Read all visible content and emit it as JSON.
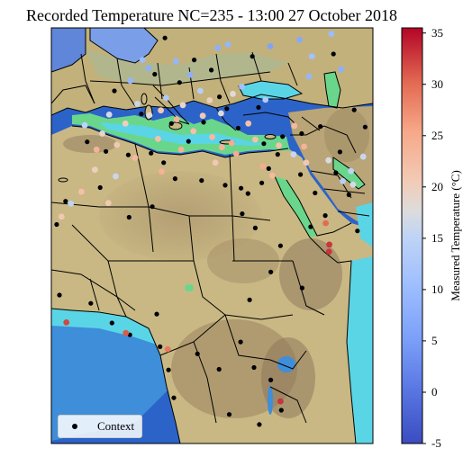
{
  "title": "Recorded Temperature NC=235 - 13:00 27 October 2018",
  "colorbar": {
    "label": "Measured Temperature (°C)",
    "ticks": [
      "35",
      "30",
      "25",
      "20",
      "15",
      "10",
      "5",
      "0",
      "-5"
    ],
    "min": -5,
    "max": 35.5,
    "cmap": "coolwarm",
    "colors": {
      "low": "#3b4cc0",
      "mid": "#dddddd",
      "high": "#b40426"
    }
  },
  "legend": {
    "label": "Context",
    "marker_color": "#000000"
  },
  "map": {
    "extent_lon": [
      -17,
      62
    ],
    "extent_lat": [
      -12,
      58
    ],
    "background": "satellite terrain with ocean depth",
    "palette": {
      "land_tan": "#c9b884",
      "land_brown": "#8f7a5e",
      "coast_green": "#69d68c",
      "ocean_cyan": "#5ad5e6",
      "ocean_blue": "#2c63c9",
      "europe_blue": "#7a9fe8"
    }
  },
  "chart_data": {
    "type": "scatter",
    "title": "Recorded Temperature NC=235 - 13:00 27 October 2018",
    "color_label": "Measured Temperature (°C)",
    "color_range": [
      -5,
      35.5
    ],
    "context_points": [
      [
        8.4,
        50.2
      ],
      [
        14.5,
        48.8
      ],
      [
        24.3,
        46.4
      ],
      [
        32.4,
        53.2
      ],
      [
        -1.5,
        47.4
      ],
      [
        10.9,
        56.3
      ],
      [
        18.1,
        52.6
      ],
      [
        22.3,
        50.9
      ],
      [
        26.1,
        44.4
      ],
      [
        33.9,
        44.6
      ],
      [
        5.1,
        43.5
      ],
      [
        12.5,
        41.9
      ],
      [
        16.7,
        38.9
      ],
      [
        20.4,
        42.1
      ],
      [
        28.9,
        41.1
      ],
      [
        35.2,
        38.5
      ],
      [
        39.8,
        39.7
      ],
      [
        44.5,
        40.2
      ],
      [
        49.1,
        41.4
      ],
      [
        53.9,
        37.1
      ],
      [
        -8.2,
        38.8
      ],
      [
        -3.6,
        37.2
      ],
      [
        1.9,
        36.6
      ],
      [
        7.5,
        36.9
      ],
      [
        10.6,
        35.3
      ],
      [
        13.4,
        32.6
      ],
      [
        19.9,
        32.3
      ],
      [
        25.7,
        31.5
      ],
      [
        29.6,
        31.0
      ],
      [
        31.3,
        30.1
      ],
      [
        34.7,
        31.9
      ],
      [
        36.4,
        34.3
      ],
      [
        38.6,
        36.7
      ],
      [
        44.2,
        33.3
      ],
      [
        47.8,
        30.2
      ],
      [
        52.9,
        33.6
      ],
      [
        56.1,
        29.9
      ],
      [
        50.3,
        26.4
      ],
      [
        46.7,
        24.5
      ],
      [
        39.3,
        21.3
      ],
      [
        33.1,
        24.3
      ],
      [
        29.9,
        26.7
      ],
      [
        -13.5,
        28.8
      ],
      [
        -15.7,
        24.9
      ],
      [
        -5.0,
        31.1
      ],
      [
        2.1,
        26.1
      ],
      [
        7.8,
        27.9
      ],
      [
        44.6,
        14.2
      ],
      [
        31.7,
        12.2
      ],
      [
        36.9,
        16.9
      ],
      [
        -15.0,
        13.0
      ],
      [
        -7.3,
        11.6
      ],
      [
        -2.1,
        8.3
      ],
      [
        2.3,
        6.3
      ],
      [
        8.9,
        9.8
      ],
      [
        9.7,
        4.3
      ],
      [
        11.8,
        0.4
      ],
      [
        13.1,
        -4.3
      ],
      [
        18.9,
        3.1
      ],
      [
        24.2,
        0.5
      ],
      [
        29.5,
        5.1
      ],
      [
        32.8,
        0.8
      ],
      [
        36.9,
        -1.3
      ],
      [
        39.5,
        -6.4
      ],
      [
        34.1,
        -8.8
      ],
      [
        26.7,
        -7.1
      ],
      [
        52.3,
        53.6
      ],
      [
        57.4,
        44.2
      ],
      [
        60.1,
        41.3
      ],
      [
        58.2,
        23.8
      ]
    ],
    "measured_points": [
      {
        "lon": 2.4,
        "lat": 49.1,
        "t": 9
      },
      {
        "lon": 6.9,
        "lat": 51.2,
        "t": 8
      },
      {
        "lon": 13.6,
        "lat": 52.4,
        "t": 9
      },
      {
        "lon": 23.9,
        "lat": 54.6,
        "t": 8
      },
      {
        "lon": 29.8,
        "lat": 48.1,
        "t": 11
      },
      {
        "lon": 35.6,
        "lat": 45.9,
        "t": 13
      },
      {
        "lon": 46.3,
        "lat": 49.8,
        "t": 9
      },
      {
        "lon": 54.2,
        "lat": 51.0,
        "t": 8
      },
      {
        "lon": 19.6,
        "lat": 47.4,
        "t": 14
      },
      {
        "lon": 11.2,
        "lat": 46.2,
        "t": 13
      },
      {
        "lon": -2.8,
        "lat": 43.4,
        "t": 17
      },
      {
        "lon": 4.1,
        "lat": 45.2,
        "t": 16
      },
      {
        "lon": 9.9,
        "lat": 44.1,
        "t": 21
      },
      {
        "lon": 15.3,
        "lat": 45.0,
        "t": 19
      },
      {
        "lon": 21.9,
        "lat": 45.8,
        "t": 20
      },
      {
        "lon": 27.6,
        "lat": 46.9,
        "t": 18
      },
      {
        "lon": 31.4,
        "lat": 41.9,
        "t": 22
      },
      {
        "lon": 42.7,
        "lat": 41.5,
        "t": 23
      },
      {
        "lon": 13.8,
        "lat": 42.6,
        "t": 24
      },
      {
        "lon": 17.9,
        "lat": 40.6,
        "t": 22
      },
      {
        "lon": 22.5,
        "lat": 39.6,
        "t": 23
      },
      {
        "lon": 24.9,
        "lat": 37.9,
        "t": 24
      },
      {
        "lon": 27.3,
        "lat": 38.6,
        "t": 25
      },
      {
        "lon": 33.1,
        "lat": 39.2,
        "t": 22
      },
      {
        "lon": -5.9,
        "lat": 37.5,
        "t": 24
      },
      {
        "lon": -0.9,
        "lat": 38.3,
        "t": 21
      },
      {
        "lon": 9.2,
        "lat": 39.3,
        "t": 22
      },
      {
        "lon": 14.9,
        "lat": 37.5,
        "t": 24
      },
      {
        "lon": 3.6,
        "lat": 36.1,
        "t": 23
      },
      {
        "lon": 10.1,
        "lat": 33.8,
        "t": 24
      },
      {
        "lon": 23.3,
        "lat": 35.3,
        "t": 21
      },
      {
        "lon": 28.4,
        "lat": 36.8,
        "t": 25
      },
      {
        "lon": 35.0,
        "lat": 34.7,
        "t": 25
      },
      {
        "lon": 37.3,
        "lat": 33.1,
        "t": 23
      },
      {
        "lon": 45.6,
        "lat": 35.3,
        "t": 21
      },
      {
        "lon": 51.1,
        "lat": 35.7,
        "t": 17
      },
      {
        "lon": 54.6,
        "lat": 32.2,
        "t": 14
      },
      {
        "lon": 57.1,
        "lat": 31.6,
        "t": 17
      },
      {
        "lon": 56.6,
        "lat": 33.9,
        "t": 15
      },
      {
        "lon": 59.6,
        "lat": 36.3,
        "t": 16
      },
      {
        "lon": 47.0,
        "lat": 53.2,
        "t": 11
      },
      {
        "lon": 51.8,
        "lat": 57.0,
        "t": 10
      },
      {
        "lon": -6.3,
        "lat": 34.1,
        "t": 20
      },
      {
        "lon": -9.6,
        "lat": 30.4,
        "t": 22
      },
      {
        "lon": -14.5,
        "lat": 26.2,
        "t": 21
      },
      {
        "lon": -12.2,
        "lat": 28.4,
        "t": 15
      },
      {
        "lon": -1.2,
        "lat": 33.0,
        "t": 16
      },
      {
        "lon": -3.0,
        "lat": 28.5,
        "t": 21
      },
      {
        "lon": 50.4,
        "lat": 25.1,
        "t": 30
      },
      {
        "lon": 51.2,
        "lat": 20.3,
        "t": 33
      },
      {
        "lon": 51.3,
        "lat": 21.5,
        "t": 33
      },
      {
        "lon": -13.3,
        "lat": 8.4,
        "t": 32
      },
      {
        "lon": 1.3,
        "lat": 6.6,
        "t": 31
      },
      {
        "lon": 11.6,
        "lat": 3.9,
        "t": 29
      },
      {
        "lon": 39.3,
        "lat": -4.9,
        "t": 33
      },
      {
        "lon": 26.4,
        "lat": 55.2,
        "t": 9
      },
      {
        "lon": 17.1,
        "lat": 50.1,
        "t": 8
      },
      {
        "lon": 36.8,
        "lat": 54.9,
        "t": 6
      },
      {
        "lon": 44.0,
        "lat": 56.0,
        "t": 7
      },
      {
        "lon": 5.4,
        "lat": 52.6,
        "t": 10
      },
      {
        "lon": 20.2,
        "lat": 43.2,
        "t": 21
      },
      {
        "lon": 24.7,
        "lat": 43.6,
        "t": 18
      },
      {
        "lon": 38.9,
        "lat": 38.2,
        "t": 22
      },
      {
        "lon": 45.1,
        "lat": 38.0,
        "t": 24
      },
      {
        "lon": 42.5,
        "lat": 36.7,
        "t": 16
      },
      {
        "lon": -8.8,
        "lat": 41.6,
        "t": 15
      },
      {
        "lon": -4.5,
        "lat": 40.2,
        "t": 19
      },
      {
        "lon": 1.2,
        "lat": 41.9,
        "t": 20
      },
      {
        "lon": 7.1,
        "lat": 43.3,
        "t": 18
      }
    ]
  }
}
